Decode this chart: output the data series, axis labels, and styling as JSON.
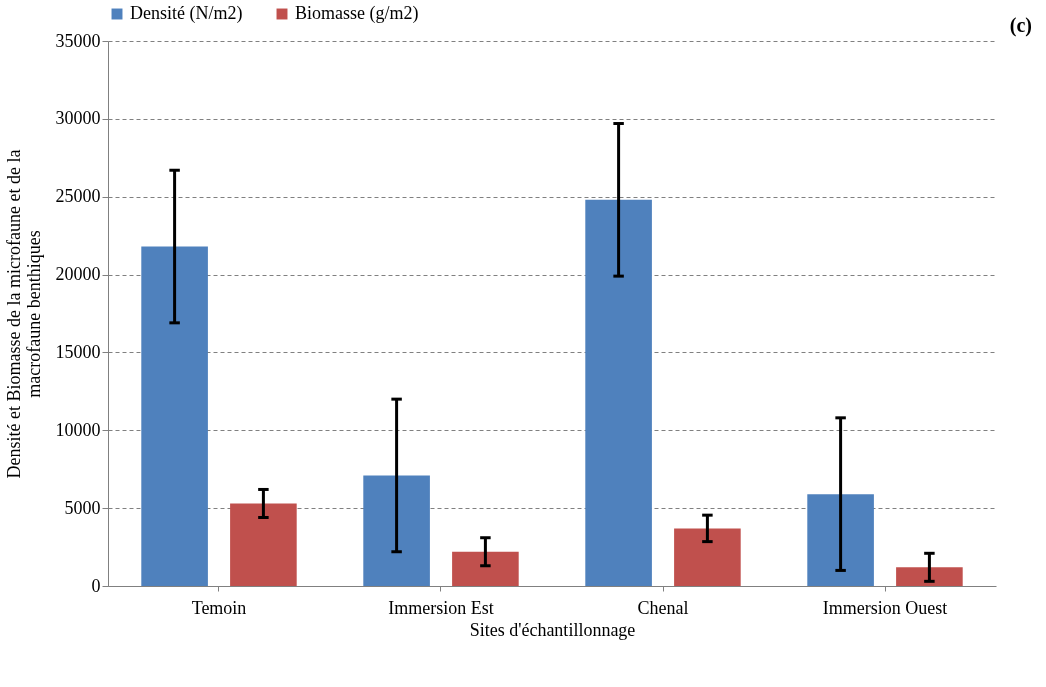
{
  "chart_data": {
    "type": "bar",
    "xlabel": "Sites d'échantillonnage",
    "ylabel": "Densité et Biomasse de la microfaune et de la macrofaune benthiques",
    "categories": [
      "Temoin",
      "Immersion Est",
      "Chenal",
      "Immersion Ouest"
    ],
    "series": [
      {
        "name": "Densité (N/m2)",
        "color": "#4f81bd",
        "values": [
          21800,
          7100,
          24800,
          5900
        ],
        "errors": [
          4900,
          4900,
          4900,
          4900
        ]
      },
      {
        "name": "Biomasse (g/m2)",
        "color": "#c0504d",
        "values": [
          5300,
          2200,
          3700,
          1200
        ],
        "errors": [
          900,
          900,
          850,
          900
        ]
      }
    ],
    "ylim": [
      0,
      35000
    ],
    "yticks": [
      0,
      5000,
      10000,
      15000,
      20000,
      25000,
      30000,
      35000
    ],
    "grid": "y",
    "legend": "top",
    "annotations": [
      "(c)"
    ]
  }
}
